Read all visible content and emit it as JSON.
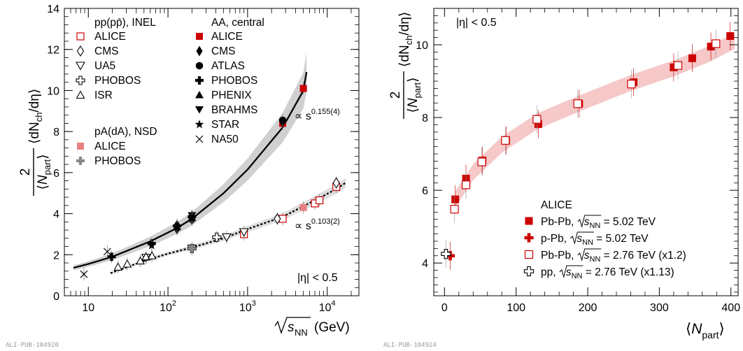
{
  "colors": {
    "alice_aa": "#cc0000",
    "alice_pa": "#e88080",
    "pa_phobos": "#888888",
    "band": "#f6c8c8",
    "fit_band": "#c8c8c8"
  },
  "chart_data": [
    {
      "type": "scatter",
      "log_x": true,
      "xlim": [
        5,
        25000
      ],
      "ylim": [
        0,
        14
      ],
      "xticks_labels": [
        "10",
        "10",
        "10",
        "10"
      ],
      "xticks_exponents": [
        "",
        "2",
        "3",
        "4"
      ],
      "yticks": [
        0,
        2,
        4,
        6,
        8,
        10,
        12,
        14
      ],
      "xlabel": {
        "root": "s",
        "sub": "NN",
        "unit": "(GeV)"
      },
      "ylabel": {
        "num": "2",
        "den_sym": "N",
        "den_sub": "part",
        "main": "⟨dN",
        "main_sub": "ch",
        "tail": "/dη⟩"
      },
      "annotations": {
        "eta": "|η| < 0.5",
        "fit_aa": {
          "prefix": "∝ s",
          "exp": "0.155(4)"
        },
        "fit_pp": {
          "prefix": "∝ s",
          "exp": "0.103(2)"
        },
        "tag": "ALI-PUB-104920"
      },
      "legend_left": {
        "header_pp": "pp(pp̄), INEL",
        "pp": [
          {
            "marker": "open-square",
            "label": "ALICE"
          },
          {
            "marker": "open-diamond",
            "label": "CMS"
          },
          {
            "marker": "open-down-triangle",
            "label": "UA5"
          },
          {
            "marker": "open-cross",
            "label": "PHOBOS"
          },
          {
            "marker": "open-triangle",
            "label": "ISR"
          }
        ],
        "header_pa": "pA(dA), NSD",
        "pa": [
          {
            "marker": "pink-square",
            "label": "ALICE"
          },
          {
            "marker": "grey-cross",
            "label": "PHOBOS"
          }
        ]
      },
      "legend_right": {
        "header": "AA, central",
        "items": [
          {
            "marker": "red-square",
            "label": "ALICE"
          },
          {
            "marker": "filled-diamond",
            "label": "CMS"
          },
          {
            "marker": "filled-circle",
            "label": "ATLAS"
          },
          {
            "marker": "filled-cross",
            "label": "PHOBOS"
          },
          {
            "marker": "filled-triangle",
            "label": "PHENIX"
          },
          {
            "marker": "filled-down-triangle",
            "label": "BRAHMS"
          },
          {
            "marker": "star",
            "label": "STAR"
          },
          {
            "marker": "x",
            "label": "NA50"
          }
        ]
      },
      "series": [
        {
          "name": "pp ALICE",
          "marker": "open-square",
          "points": [
            [
              900,
              3.0
            ],
            [
              2760,
              3.75
            ],
            [
              7000,
              4.5
            ],
            [
              8000,
              4.65
            ],
            [
              13000,
              5.3
            ]
          ]
        },
        {
          "name": "pp CMS",
          "marker": "open-diamond",
          "points": [
            [
              2360,
              3.75
            ],
            [
              13000,
              5.5
            ]
          ]
        },
        {
          "name": "pp UA5",
          "marker": "open-down-triangle",
          "points": [
            [
              53,
              1.85
            ],
            [
              200,
              2.3
            ],
            [
              546,
              2.85
            ],
            [
              900,
              3.1
            ]
          ]
        },
        {
          "name": "pp PHOBOS",
          "marker": "open-cross",
          "points": [
            [
              410,
              2.85
            ],
            [
              200,
              2.3
            ]
          ]
        },
        {
          "name": "pp ISR",
          "marker": "open-triangle",
          "points": [
            [
              23.6,
              1.4
            ],
            [
              30.8,
              1.55
            ],
            [
              45,
              1.7
            ],
            [
              53,
              1.9
            ],
            [
              63,
              1.95
            ]
          ]
        },
        {
          "name": "pA ALICE",
          "marker": "pink-square",
          "points": [
            [
              5020,
              4.3
            ]
          ]
        },
        {
          "name": "pA PHOBOS",
          "marker": "grey-cross",
          "points": [
            [
              200,
              2.3
            ]
          ]
        },
        {
          "name": "AA ALICE",
          "marker": "red-square",
          "points": [
            [
              2760,
              8.4
            ],
            [
              5020,
              10.1
            ]
          ]
        },
        {
          "name": "AA CMS",
          "marker": "filled-diamond",
          "points": [
            [
              130,
              3.45
            ],
            [
              130,
              3.25
            ],
            [
              200,
              3.9
            ],
            [
              200,
              3.7
            ],
            [
              2760,
              8.45
            ]
          ]
        },
        {
          "name": "AA ATLAS",
          "marker": "filled-circle",
          "points": [
            [
              2760,
              8.55
            ]
          ]
        },
        {
          "name": "AA PHOBOS",
          "marker": "filled-cross",
          "points": [
            [
              19.6,
              1.9
            ],
            [
              62.4,
              2.55
            ],
            [
              130,
              3.4
            ],
            [
              200,
              3.85
            ]
          ]
        },
        {
          "name": "AA PHENIX",
          "marker": "filled-triangle",
          "points": [
            [
              130,
              3.35
            ],
            [
              200,
              3.8
            ]
          ]
        },
        {
          "name": "AA BRAHMS",
          "marker": "filled-down-triangle",
          "points": [
            [
              200,
              3.9
            ]
          ]
        },
        {
          "name": "AA STAR",
          "marker": "star",
          "points": [
            [
              62.4,
              2.45
            ],
            [
              200,
              3.75
            ]
          ]
        },
        {
          "name": "AA NA50",
          "marker": "x",
          "points": [
            [
              8.8,
              1.05
            ],
            [
              17.3,
              2.15
            ]
          ]
        }
      ],
      "fits": [
        {
          "name": "AA power law",
          "style": "solid",
          "x_range": [
            6.5,
            5500
          ],
          "points": [
            [
              6.5,
              1.36
            ],
            [
              10,
              1.55
            ],
            [
              20,
              1.9
            ],
            [
              60,
              2.65
            ],
            [
              130,
              3.3
            ],
            [
              200,
              3.75
            ],
            [
              500,
              5.0
            ],
            [
              1000,
              6.15
            ],
            [
              2760,
              8.2
            ],
            [
              5020,
              10.0
            ],
            [
              5500,
              10.9
            ]
          ]
        },
        {
          "name": "pp power law",
          "style": "dotted",
          "x_range": [
            19,
            17000
          ],
          "points": [
            [
              19,
              1.1
            ],
            [
              50,
              1.7
            ],
            [
              100,
              2.05
            ],
            [
              200,
              2.35
            ],
            [
              500,
              2.8
            ],
            [
              1000,
              3.25
            ],
            [
              2760,
              3.85
            ],
            [
              7000,
              4.65
            ],
            [
              13000,
              5.2
            ],
            [
              17000,
              5.5
            ]
          ]
        }
      ]
    },
    {
      "type": "scatter",
      "xlim": [
        -15,
        410
      ],
      "ylim": [
        3.1,
        11
      ],
      "xticks": [
        0,
        100,
        200,
        300,
        400
      ],
      "yticks": [
        4,
        6,
        8,
        10
      ],
      "xlabel": {
        "sym": "N",
        "sub": "part",
        "open": "⟨",
        "close": "⟩"
      },
      "ylabel": {
        "num": "2",
        "den_sym": "N",
        "den_sub": "part",
        "main": "⟨dN",
        "main_sub": "ch",
        "tail": "/dη⟩"
      },
      "annotations": {
        "eta": "|η| < 0.5",
        "tag": "ALI-PUB-104924"
      },
      "legend": {
        "header": "ALICE",
        "items": [
          {
            "marker": "red-square",
            "pre": "Pb-Pb, ",
            "root": "s",
            "sub": "NN",
            "post": " = 5.02 TeV"
          },
          {
            "marker": "red-cross",
            "pre": "p-Pb, ",
            "root": "s",
            "sub": "NN",
            "post": " = 5.02 TeV"
          },
          {
            "marker": "open-square",
            "pre": "Pb-Pb, ",
            "root": "s",
            "sub": "NN",
            "post": " = 2.76 TeV (x1.2)"
          },
          {
            "marker": "open-cross",
            "pre": "pp, ",
            "root": "s",
            "sub": "NN",
            "post": " = 2.76 TeV (x1.13)"
          }
        ]
      },
      "series": [
        {
          "name": "Pb-Pb 5.02 TeV",
          "marker": "red-square",
          "points": [
            [
              15,
              5.75
            ],
            [
              30,
              6.32
            ],
            [
              53,
              6.82
            ],
            [
              86,
              7.37
            ],
            [
              131,
              7.82
            ],
            [
              188,
              8.38
            ],
            [
              264,
              8.97
            ],
            [
              320,
              9.38
            ],
            [
              346,
              9.63
            ],
            [
              372,
              9.95
            ],
            [
              399,
              10.24
            ]
          ]
        },
        {
          "name": "p-Pb 5.02 TeV",
          "marker": "red-cross",
          "points": [
            [
              8,
              4.2
            ]
          ]
        },
        {
          "name": "Pb-Pb 2.76 TeV (x1.2)",
          "marker": "open-square",
          "points": [
            [
              14,
              5.48
            ],
            [
              30,
              6.15
            ],
            [
              52,
              6.78
            ],
            [
              85,
              7.37
            ],
            [
              129,
              7.95
            ],
            [
              186,
              8.38
            ],
            [
              261,
              8.92
            ],
            [
              326,
              9.43
            ],
            [
              379,
              10.03
            ]
          ]
        },
        {
          "name": "pp 2.76 TeV (x1.13)",
          "marker": "open-cross",
          "points": [
            [
              2,
              4.25
            ]
          ]
        }
      ],
      "band": {
        "x": [
          15,
          40,
          80,
          130,
          190,
          260,
          320,
          370,
          405
        ],
        "y": [
          5.75,
          6.5,
          7.25,
          7.9,
          8.4,
          8.95,
          9.35,
          9.75,
          10.1
        ]
      }
    }
  ]
}
